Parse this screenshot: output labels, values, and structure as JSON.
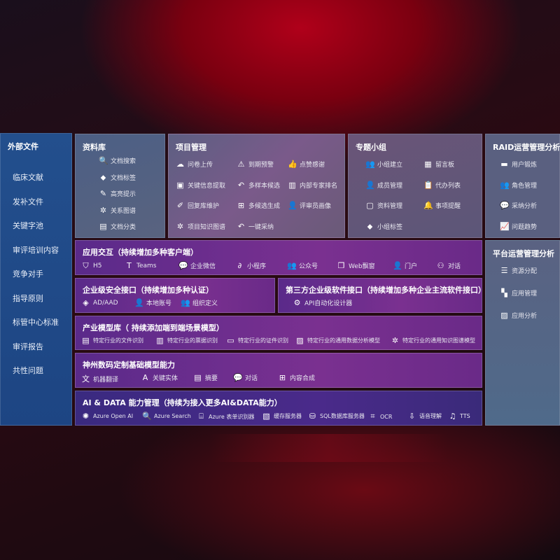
{
  "left": {
    "title": "外部文件",
    "items": [
      "临床文献",
      "发补文件",
      "关键字池",
      "审评培训内容",
      "竞争对手",
      "指导原则",
      "标管中心标准",
      "审评报告",
      "共性问题"
    ]
  },
  "library": {
    "title": "资料库",
    "items": [
      {
        "icon": "document-search-icon",
        "g": "🔍",
        "label": "文档搜索"
      },
      {
        "icon": "tag-icon",
        "g": "⬥",
        "label": "文档标签"
      },
      {
        "icon": "pen-icon",
        "g": "✎",
        "label": "高亮提示"
      },
      {
        "icon": "graph-icon",
        "g": "✲",
        "label": "关系图谱"
      },
      {
        "icon": "document-list-icon",
        "g": "▤",
        "label": "文档分类"
      }
    ]
  },
  "project": {
    "title": "项目管理",
    "items": [
      {
        "icon": "cloud-upload-icon",
        "g": "☁",
        "label": "问卷上传"
      },
      {
        "icon": "alarm-icon",
        "g": "⚠",
        "label": "到期预警"
      },
      {
        "icon": "thumbs-up-icon",
        "g": "👍",
        "label": "点赞感谢"
      },
      {
        "icon": "extract-icon",
        "g": "▣",
        "label": "关键信息提取"
      },
      {
        "icon": "reply-icon",
        "g": "↶",
        "label": "多样本候选"
      },
      {
        "icon": "ranking-icon",
        "g": "▥",
        "label": "内部专家排名"
      },
      {
        "icon": "edit-icon",
        "g": "✐",
        "label": "回复库维护"
      },
      {
        "icon": "puzzle-icon",
        "g": "⊞",
        "label": "多候选生成"
      },
      {
        "icon": "user-icon",
        "g": "👤",
        "label": "评审员画像"
      },
      {
        "icon": "graph-icon",
        "g": "✲",
        "label": "项目知识图谱"
      },
      {
        "icon": "reply-icon",
        "g": "↶",
        "label": "一键采纳"
      }
    ]
  },
  "group": {
    "title": "专题小组",
    "items": [
      {
        "icon": "users-icon",
        "g": "👥",
        "label": "小组建立"
      },
      {
        "icon": "bbs-icon",
        "g": "▦",
        "label": "留言板"
      },
      {
        "icon": "add-user-icon",
        "g": "👤",
        "label": "成员管理"
      },
      {
        "icon": "clipboard-icon",
        "g": "📋",
        "label": "代办列表"
      },
      {
        "icon": "folder-icon",
        "g": "▢",
        "label": "资料管理"
      },
      {
        "icon": "bell-icon",
        "g": "🔔",
        "label": "事项提醒"
      },
      {
        "icon": "tag-icon",
        "g": "⬥",
        "label": "小组标签"
      }
    ]
  },
  "raid": {
    "title": "RAID运营管理分析",
    "items": [
      {
        "icon": "id-card-icon",
        "g": "▬",
        "label": "用户锻炼"
      },
      {
        "icon": "users-icon",
        "g": "👥",
        "label": "角色管理"
      },
      {
        "icon": "qa-icon",
        "g": "💬",
        "label": "采纳分析"
      },
      {
        "icon": "trend-icon",
        "g": "📈",
        "label": "问题趋势"
      }
    ]
  },
  "platform": {
    "title": "平台运营管理分析",
    "items": [
      {
        "icon": "list-icon",
        "g": "☰",
        "label": "资源分配"
      },
      {
        "icon": "apps-icon",
        "g": "▚",
        "label": "应用管理"
      },
      {
        "icon": "chart-icon",
        "g": "▨",
        "label": "应用分析"
      }
    ]
  },
  "app": {
    "title": "应用交互（持续增加多种客户端）",
    "items": [
      {
        "icon": "html5-icon",
        "g": "⛉",
        "label": "H5"
      },
      {
        "icon": "teams-icon",
        "g": "T",
        "label": "Teams"
      },
      {
        "icon": "wechat-icon",
        "g": "💬",
        "label": "企业微信"
      },
      {
        "icon": "mini-program-icon",
        "g": "∂",
        "label": "小程序"
      },
      {
        "icon": "users-icon",
        "g": "👥",
        "label": "公众号"
      },
      {
        "icon": "window-icon",
        "g": "❐",
        "label": "Web飘窗"
      },
      {
        "icon": "portal-icon",
        "g": "👤",
        "label": "门户"
      },
      {
        "icon": "chat-icon",
        "g": "⚇",
        "label": "对话"
      }
    ]
  },
  "security": {
    "title": "企业级安全接口（持续增加多种认证）",
    "items": [
      {
        "icon": "ad-icon",
        "g": "◈",
        "label": "AD/AAD"
      },
      {
        "icon": "local-account-icon",
        "g": "👤",
        "label": "本地账号"
      },
      {
        "icon": "organization-icon",
        "g": "👥",
        "label": "组织定义"
      }
    ]
  },
  "third": {
    "title": "第三方企业级软件接口（持续增加多种企业主流软件接口）",
    "items": [
      {
        "icon": "gear-icon",
        "g": "⚙",
        "label": "API自动化设计器"
      }
    ]
  },
  "industry": {
    "title": "产业模型库（ 持续添加端到端场景模型）",
    "items": [
      {
        "icon": "file-icon",
        "g": "▤",
        "label": "特定行业的文件识别"
      },
      {
        "icon": "receipt-icon",
        "g": "▥",
        "label": "特定行业的票据识别"
      },
      {
        "icon": "id-card-icon",
        "g": "▭",
        "label": "特定行业的证件识别"
      },
      {
        "icon": "analytics-icon",
        "g": "▨",
        "label": "特定行业的通用数据分析模型"
      },
      {
        "icon": "graph-icon",
        "g": "✲",
        "label": "特定行业的通用知识图谱模型"
      }
    ]
  },
  "base": {
    "title": "神州数码定制基础模型能力",
    "items": [
      {
        "icon": "translate-icon",
        "g": "文",
        "label": "机器翻译"
      },
      {
        "icon": "entity-icon",
        "g": "A",
        "label": "关键实体"
      },
      {
        "icon": "summary-icon",
        "g": "▤",
        "label": "摘要"
      },
      {
        "icon": "chat-icon",
        "g": "💬",
        "label": "对话"
      },
      {
        "icon": "compose-icon",
        "g": "⊞",
        "label": "内容合成"
      }
    ]
  },
  "ai": {
    "title": "AI & DATA 能力管理（持续为接入更多AI&DATA能力）",
    "items": [
      {
        "icon": "openai-icon",
        "g": "✺",
        "label": "Azure Open AI"
      },
      {
        "icon": "search-icon",
        "g": "🔍",
        "label": "Azure Search"
      },
      {
        "icon": "form-recognizer-icon",
        "g": "⌸",
        "label": "Azure 表单识别器"
      },
      {
        "icon": "cache-icon",
        "g": "▧",
        "label": "缓存服务器"
      },
      {
        "icon": "sql-icon",
        "g": "⛁",
        "label": "SQL数据库服务器"
      },
      {
        "icon": "ocr-icon",
        "g": "⌗",
        "label": "OCR"
      },
      {
        "icon": "speech-icon",
        "g": "⇩",
        "label": "语音理解"
      },
      {
        "icon": "tts-icon",
        "g": "♫",
        "label": "TTS"
      }
    ]
  }
}
